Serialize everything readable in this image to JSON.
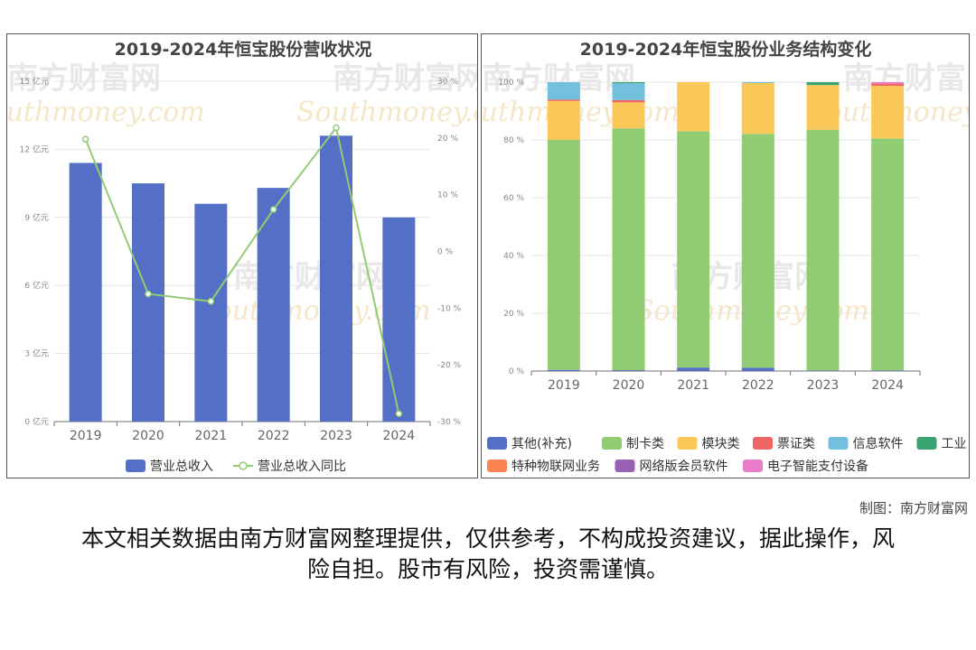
{
  "watermark": {
    "cn": "南方财富网",
    "en": "Southmoney.com"
  },
  "credit": "制图：南方财富网",
  "disclaimer": "本文相关数据由南方财富网整理提供，仅供参考，不构成投资建议，据此操作，风险自担。股市有风险，投资需谨慎。",
  "chart_data": [
    {
      "type": "bar",
      "title": "2019-2024年恒宝股份营收状况",
      "categories": [
        "2019",
        "2020",
        "2021",
        "2022",
        "2023",
        "2024"
      ],
      "y_left": {
        "ticks": [
          "0 亿元",
          "3 亿元",
          "6 亿元",
          "9 亿元",
          "12 亿元",
          "15 亿元"
        ],
        "ylim": [
          0,
          15
        ]
      },
      "y_right": {
        "ticks": [
          "-30 %",
          "-20 %",
          "-10 %",
          "0 %",
          "10 %",
          "20 %",
          "30 %"
        ],
        "ylim": [
          -30,
          30
        ]
      },
      "series": [
        {
          "name": "营业总收入",
          "type": "bar",
          "axis": "left",
          "color": "#5470c6",
          "values": [
            11.4,
            10.5,
            9.6,
            10.3,
            12.6,
            9.0
          ]
        },
        {
          "name": "营业总收入同比",
          "type": "line",
          "axis": "right",
          "color": "#91cc75",
          "values": [
            19.8,
            -7.5,
            -8.8,
            7.4,
            21.8,
            -28.6
          ]
        }
      ],
      "legend_position": "bottom",
      "grid": true
    },
    {
      "type": "bar",
      "stacked": true,
      "title": "2019-2024年恒宝股份业务结构变化",
      "categories": [
        "2019",
        "2020",
        "2021",
        "2022",
        "2023",
        "2024"
      ],
      "y": {
        "ticks": [
          "0 %",
          "20 %",
          "40 %",
          "60 %",
          "80 %",
          "100 %"
        ],
        "ylim": [
          0,
          100
        ]
      },
      "series": [
        {
          "name": "其他(补充)",
          "color": "#5470c6",
          "values": [
            0.4,
            0.3,
            1.2,
            1.1,
            0.2,
            0.2
          ]
        },
        {
          "name": "制卡类",
          "color": "#91cc75",
          "values": [
            79.6,
            83.7,
            81.8,
            81.0,
            83.3,
            80.3
          ]
        },
        {
          "name": "模块类",
          "color": "#fac858",
          "values": [
            13.5,
            9.0,
            17.0,
            17.6,
            15.5,
            18.2
          ]
        },
        {
          "name": "票证类",
          "color": "#ee6666",
          "values": [
            0.5,
            0.8,
            0,
            0,
            0,
            0.8
          ]
        },
        {
          "name": "信息软件",
          "color": "#73c0de",
          "values": [
            6.0,
            5.8,
            0,
            0.3,
            0,
            0
          ]
        },
        {
          "name": "工业",
          "color": "#3ba272",
          "values": [
            0,
            0.4,
            0,
            0,
            1.0,
            0
          ]
        },
        {
          "name": "特种物联网业务",
          "color": "#fc8452",
          "values": [
            0,
            0,
            0,
            0,
            0,
            0
          ]
        },
        {
          "name": "网络版会员软件",
          "color": "#9a60b4",
          "values": [
            0,
            0,
            0,
            0,
            0,
            0
          ]
        },
        {
          "name": "电子智能支付设备",
          "color": "#ea7ccc",
          "values": [
            0,
            0,
            0,
            0,
            0,
            0.5
          ]
        }
      ],
      "legend_position": "bottom",
      "grid": true
    }
  ]
}
